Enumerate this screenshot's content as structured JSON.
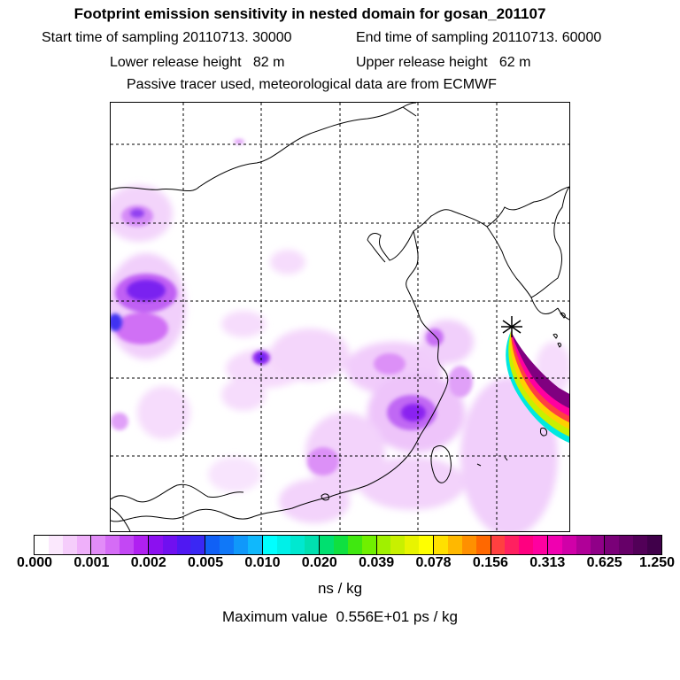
{
  "header": {
    "title": "Footprint emission sensitivity in nested domain for gosan_201107",
    "start_label": "Start time of sampling",
    "start_value": "20110713. 30000",
    "end_label": "End time of sampling",
    "end_value": "20110713. 60000",
    "lower_label": "Lower release height",
    "lower_value": "82 m",
    "upper_label": "Upper release height",
    "upper_value": "62 m",
    "note": "Passive tracer used, meteorological data are from ECMWF"
  },
  "colorbar": {
    "ticks": [
      "0.000",
      "0.001",
      "0.002",
      "0.005",
      "0.010",
      "0.020",
      "0.039",
      "0.078",
      "0.156",
      "0.313",
      "0.625",
      "1.250"
    ],
    "colors": [
      "#ffffff",
      "#fbe8fd",
      "#f5cdfb",
      "#efb0fa",
      "#e28cf8",
      "#d56cf6",
      "#c347f4",
      "#b020f1",
      "#8c10f0",
      "#7010f0",
      "#5018f2",
      "#3a28f4",
      "#1060f6",
      "#1078f8",
      "#1098fa",
      "#10b8fc",
      "#00ffff",
      "#00f0e8",
      "#00e8d0",
      "#00e0b0",
      "#00e070",
      "#10e040",
      "#40e810",
      "#70f000",
      "#a0f000",
      "#c8f000",
      "#e8f400",
      "#ffff00",
      "#ffe000",
      "#ffb800",
      "#ff9000",
      "#ff6800",
      "#ff4040",
      "#ff2060",
      "#ff0080",
      "#ff00a0",
      "#f000b0",
      "#d000a8",
      "#b00098",
      "#900088",
      "#7a0078",
      "#660068",
      "#520058",
      "#40004a"
    ],
    "unit": "ns / kg"
  },
  "footer": {
    "max_label": "Maximum value",
    "max_value": "0.556E+01 ps / kg"
  },
  "map": {
    "receptor": "gosan",
    "colors": {
      "coast": "#000000",
      "grid": "#000000"
    }
  }
}
